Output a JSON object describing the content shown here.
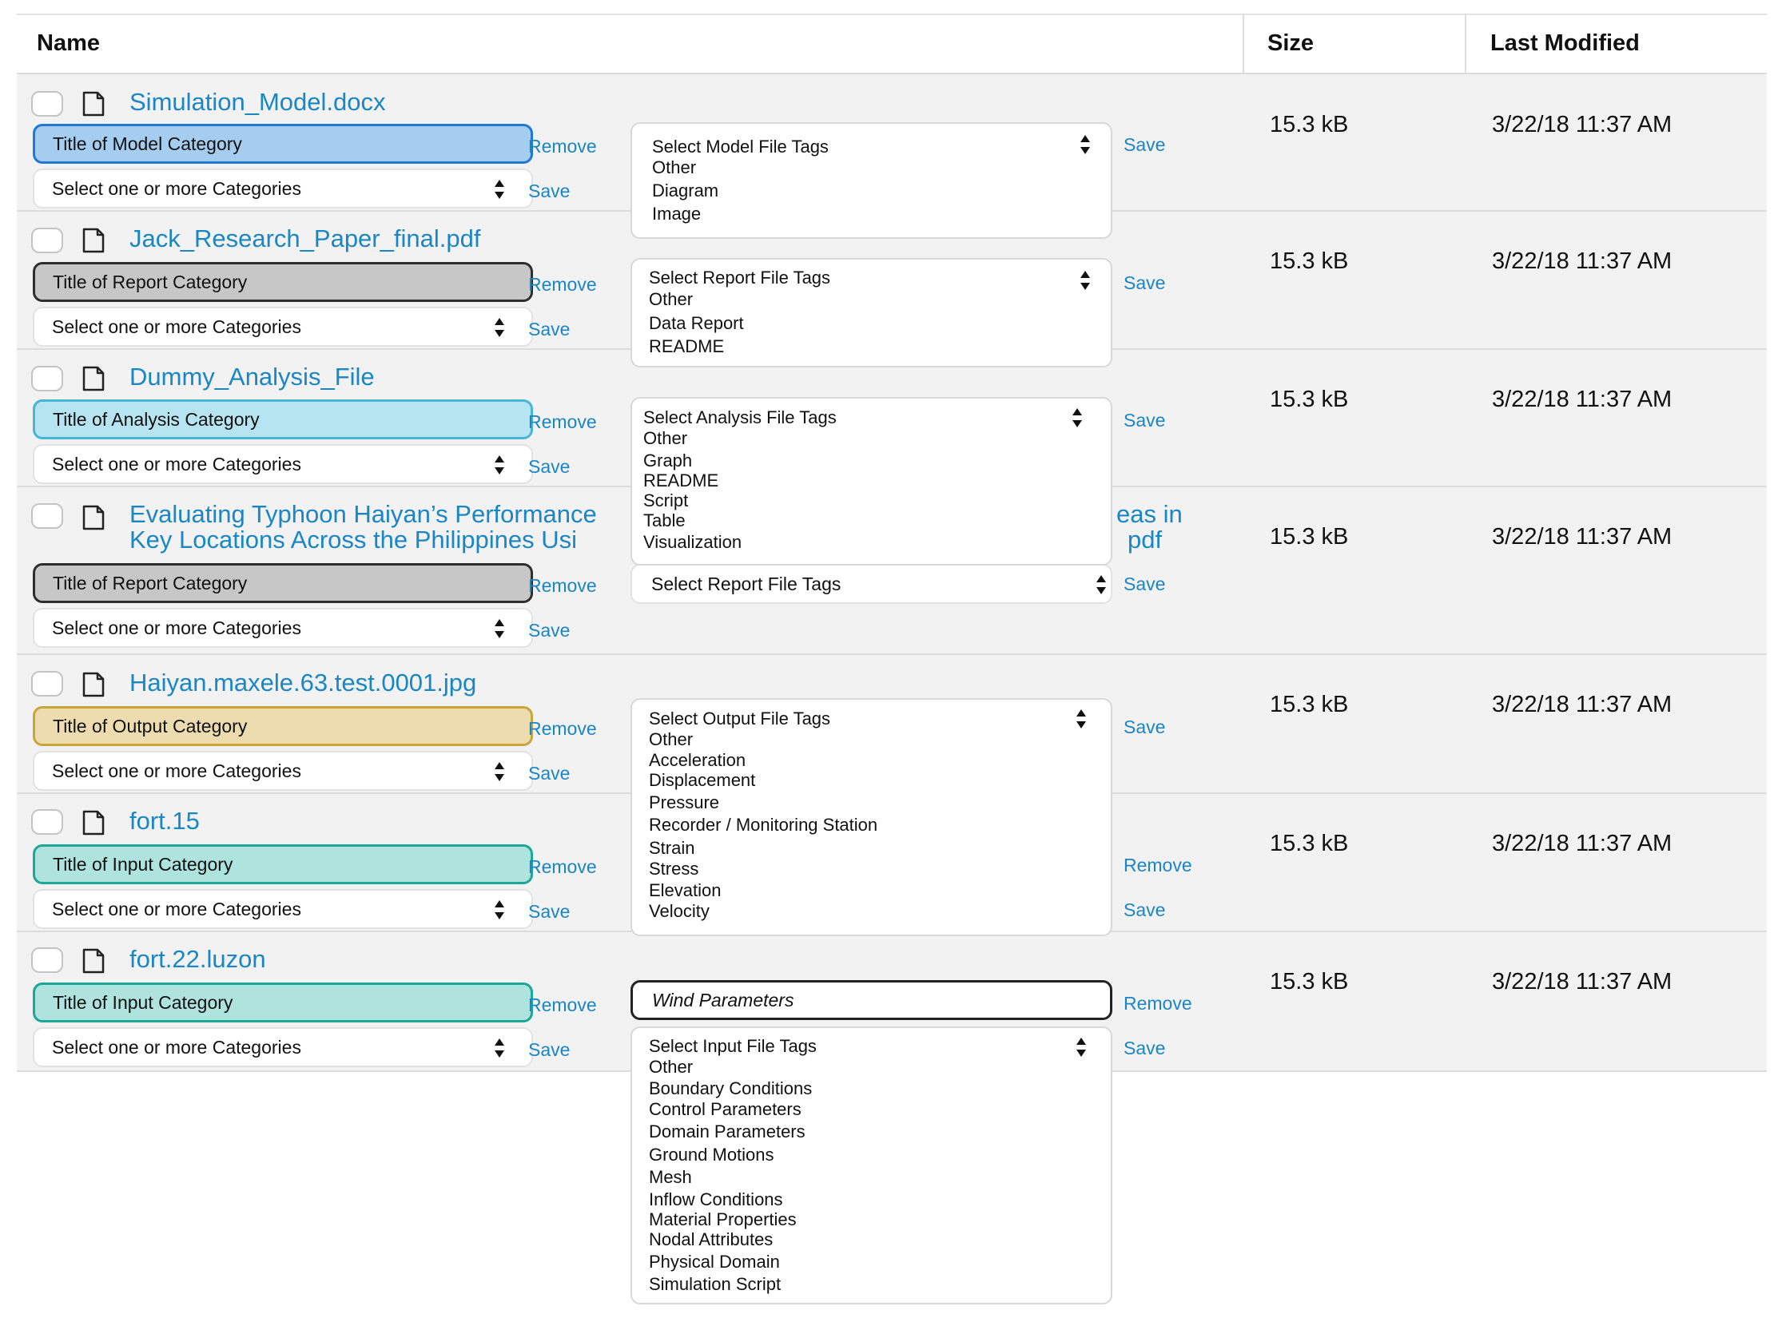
{
  "table": {
    "headers": {
      "name": "Name",
      "size": "Size",
      "modified": "Last Modified"
    }
  },
  "common": {
    "remove": "Remove",
    "save": "Save",
    "categories_placeholder": "Select one or more Categories"
  },
  "rows": [
    {
      "file_name": "Simulation_Model.docx",
      "category_title": "Title of Model Category",
      "category_color": "#a5cdf0",
      "category_border": "#1f78d1",
      "size": "15.3 kB",
      "modified": "3/22/18 11:37 AM",
      "tags": {
        "placeholder": "Select Model File Tags",
        "options": [
          "Other",
          "Diagram",
          "Image"
        ]
      }
    },
    {
      "file_name": "Jack_Research_Paper_final.pdf",
      "category_title": "Title of Report Category",
      "category_color": "#c7c7c7",
      "category_border": "#2e2e2e",
      "size": "15.3 kB",
      "modified": "3/22/18 11:37 AM",
      "tags": {
        "placeholder": "Select Report File Tags",
        "options": [
          "Other",
          "Data Report",
          "README"
        ]
      }
    },
    {
      "file_name": "Dummy_Analysis_File",
      "category_title": "Title of Analysis Category",
      "category_color": "#b6e5f1",
      "category_border": "#47b5d8",
      "size": "15.3 kB",
      "modified": "3/22/18 11:37 AM",
      "tags": {
        "placeholder": "Select Analysis File Tags",
        "options": [
          "Other",
          "Graph",
          "README",
          "Script",
          "Table",
          "Visualization"
        ]
      }
    },
    {
      "file_name_line1": "Evaluating Typhoon Haiyan’s Performance",
      "file_name_line1_end": "eas in",
      "file_name_line2": "Key Locations Across the Philippines Usi",
      "file_name_line2_end": "pdf",
      "category_title": "Title of Report Category",
      "category_color": "#c7c7c7",
      "category_border": "#2e2e2e",
      "size": "15.3 kB",
      "modified": "3/22/18 11:37 AM",
      "tags": {
        "placeholder": "Select Report File Tags"
      }
    },
    {
      "file_name": "Haiyan.maxele.63.test.0001.jpg",
      "category_title": "Title of Output Category",
      "category_color": "#ecdcaf",
      "category_border": "#c9a63a",
      "size": "15.3 kB",
      "modified": "3/22/18 11:37 AM",
      "tags": {
        "placeholder": "Select Output File Tags",
        "options": [
          "Other",
          "Acceleration",
          "Displacement",
          "Pressure",
          "Recorder / Monitoring Station",
          "Strain",
          "Stress",
          "Elevation",
          "Velocity"
        ]
      }
    },
    {
      "file_name": "fort.15",
      "category_title": "Title of Input Category",
      "category_color": "#afe3dd",
      "category_border": "#1ca797",
      "size": "15.3 kB",
      "modified": "3/22/18 11:37 AM"
    },
    {
      "file_name": "fort.22.luzon",
      "category_title": "Title of Input Category",
      "category_color": "#afe3dd",
      "category_border": "#1ca797",
      "size": "15.3 kB",
      "modified": "3/22/18 11:37 AM",
      "wind_value": "Wind Parameters",
      "tags": {
        "placeholder": "Select Input File Tags",
        "options": [
          "Other",
          "Boundary Conditions",
          "Control Parameters",
          "Domain Parameters",
          "Ground Motions",
          "Mesh",
          "Inflow Conditions",
          "Material Properties",
          "Nodal Attributes",
          "Physical Domain",
          "Simulation Script"
        ]
      }
    }
  ]
}
